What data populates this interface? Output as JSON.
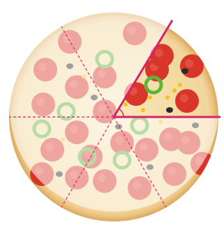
{
  "diagram": {
    "total_slices": 6,
    "highlighted_slices": 1,
    "colors": {
      "background": "#ffffff",
      "crust": "#f3d9a4",
      "crust_edge": "#e0b874",
      "cheese": "#f7e6b3",
      "pepperoni": "#d9362b",
      "pepper_green": "#5fb336",
      "olive": "#2b2b2b",
      "corn": "#f2c21b",
      "cut_line": "#e0356e",
      "highlight_line": "#d4236a",
      "faded_overlay": "#ffffff"
    },
    "icons": {
      "angle_marker": "angle-arc-icon"
    }
  }
}
